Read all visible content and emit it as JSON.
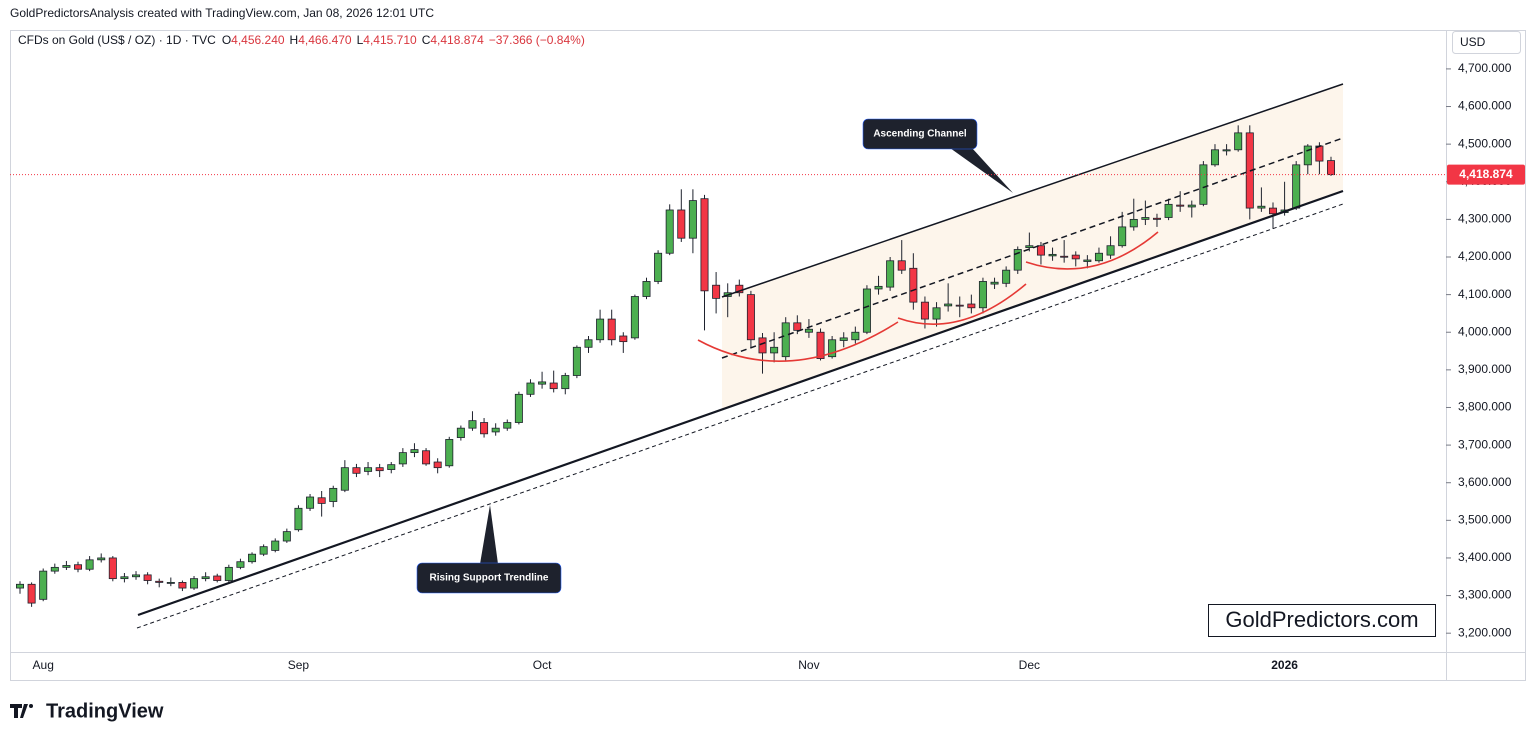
{
  "credit": "GoldPredictorsAnalysis created with TradingView.com, Jan 08, 2026 12:01 UTC",
  "brand": "TradingView",
  "chart_data": {
    "type": "candlestick",
    "symbol": "CFDs on Gold (US$ / OZ) · 1D · TVC",
    "fields": [
      [
        "O",
        "4,456.240"
      ],
      [
        "H",
        "4,466.470"
      ],
      [
        "L",
        "4,415.710"
      ],
      [
        "C",
        "4,418.874"
      ]
    ],
    "change": "−37.366 (−0.84%)",
    "currency": "USD",
    "price_label": "4,418.874",
    "annotations": [
      "Ascending Channel",
      "Rising Support Trendline"
    ],
    "watermark": "GoldPredictors.com",
    "up_color": "#4caf50",
    "down_color": "#f23645",
    "price_line_color": "#f23645",
    "ylim": [
      3150,
      4830
    ],
    "yticks": [
      {
        "value": 3200,
        "label": "3,200.000"
      },
      {
        "value": 3300,
        "label": "3,300.000"
      },
      {
        "value": 3400,
        "label": "3,400.000"
      },
      {
        "value": 3500,
        "label": "3,500.000"
      },
      {
        "value": 3600,
        "label": "3,600.000"
      },
      {
        "value": 3700,
        "label": "3,700.000"
      },
      {
        "value": 3800,
        "label": "3,800.000"
      },
      {
        "value": 3900,
        "label": "3,900.000"
      },
      {
        "value": 4000,
        "label": "4,000.000"
      },
      {
        "value": 4100,
        "label": "4,100.000"
      },
      {
        "value": 4200,
        "label": "4,200.000"
      },
      {
        "value": 4300,
        "label": "4,300.000"
      },
      {
        "value": 4400,
        "label": "4,400.000"
      },
      {
        "value": 4500,
        "label": "4,500.000"
      },
      {
        "value": 4600,
        "label": "4,600.000"
      },
      {
        "value": 4700,
        "label": "4,700.000"
      }
    ],
    "categories": [
      null,
      null,
      "Aug",
      null,
      null,
      null,
      null,
      null,
      null,
      null,
      null,
      null,
      null,
      null,
      null,
      null,
      null,
      null,
      null,
      null,
      null,
      null,
      null,
      null,
      "Sep",
      null,
      null,
      null,
      null,
      null,
      null,
      null,
      null,
      null,
      null,
      null,
      null,
      null,
      null,
      null,
      null,
      null,
      null,
      null,
      null,
      "Oct",
      null,
      null,
      null,
      null,
      null,
      null,
      null,
      null,
      null,
      null,
      null,
      null,
      null,
      null,
      null,
      null,
      null,
      null,
      null,
      null,
      null,
      null,
      "Nov",
      null,
      null,
      null,
      null,
      null,
      null,
      null,
      null,
      null,
      null,
      null,
      null,
      null,
      null,
      null,
      null,
      null,
      null,
      "Dec",
      null,
      null,
      null,
      null,
      null,
      null,
      null,
      null,
      null,
      null,
      null,
      null,
      null,
      null,
      null,
      null,
      null,
      null,
      null,
      null,
      null,
      "2026",
      null,
      null,
      null,
      null
    ],
    "ohlc": [
      [
        3320,
        3338,
        3305,
        3330
      ],
      [
        3330,
        3335,
        3270,
        3280
      ],
      [
        3290,
        3372,
        3285,
        3365
      ],
      [
        3365,
        3385,
        3358,
        3375
      ],
      [
        3375,
        3392,
        3368,
        3380
      ],
      [
        3382,
        3390,
        3362,
        3370
      ],
      [
        3370,
        3405,
        3365,
        3395
      ],
      [
        3395,
        3412,
        3388,
        3400
      ],
      [
        3400,
        3405,
        3338,
        3345
      ],
      [
        3345,
        3360,
        3335,
        3350
      ],
      [
        3350,
        3365,
        3342,
        3355
      ],
      [
        3355,
        3362,
        3330,
        3340
      ],
      [
        3338,
        3345,
        3322,
        3335
      ],
      [
        3335,
        3348,
        3325,
        3335
      ],
      [
        3335,
        3340,
        3312,
        3320
      ],
      [
        3320,
        3352,
        3315,
        3345
      ],
      [
        3345,
        3362,
        3338,
        3350
      ],
      [
        3352,
        3358,
        3335,
        3340
      ],
      [
        3340,
        3382,
        3336,
        3375
      ],
      [
        3375,
        3398,
        3370,
        3390
      ],
      [
        3390,
        3415,
        3385,
        3410
      ],
      [
        3410,
        3436,
        3405,
        3430
      ],
      [
        3420,
        3452,
        3415,
        3445
      ],
      [
        3445,
        3478,
        3440,
        3470
      ],
      [
        3475,
        3540,
        3470,
        3532
      ],
      [
        3532,
        3570,
        3525,
        3562
      ],
      [
        3560,
        3578,
        3510,
        3545
      ],
      [
        3550,
        3592,
        3535,
        3585
      ],
      [
        3580,
        3660,
        3575,
        3640
      ],
      [
        3640,
        3650,
        3615,
        3625
      ],
      [
        3630,
        3655,
        3620,
        3640
      ],
      [
        3640,
        3650,
        3615,
        3632
      ],
      [
        3635,
        3655,
        3625,
        3648
      ],
      [
        3650,
        3692,
        3642,
        3680
      ],
      [
        3680,
        3705,
        3668,
        3688
      ],
      [
        3685,
        3692,
        3645,
        3650
      ],
      [
        3655,
        3665,
        3625,
        3640
      ],
      [
        3645,
        3722,
        3640,
        3715
      ],
      [
        3720,
        3752,
        3712,
        3745
      ],
      [
        3745,
        3790,
        3738,
        3765
      ],
      [
        3760,
        3772,
        3720,
        3730
      ],
      [
        3735,
        3758,
        3725,
        3745
      ],
      [
        3745,
        3768,
        3738,
        3760
      ],
      [
        3760,
        3842,
        3755,
        3835
      ],
      [
        3835,
        3875,
        3828,
        3865
      ],
      [
        3862,
        3895,
        3850,
        3868
      ],
      [
        3865,
        3898,
        3840,
        3850
      ],
      [
        3850,
        3892,
        3835,
        3885
      ],
      [
        3885,
        3965,
        3878,
        3960
      ],
      [
        3960,
        3990,
        3945,
        3980
      ],
      [
        3980,
        4060,
        3972,
        4035
      ],
      [
        4035,
        4060,
        3965,
        3980
      ],
      [
        3990,
        4000,
        3945,
        3975
      ],
      [
        3985,
        4100,
        3980,
        4095
      ],
      [
        4095,
        4145,
        4088,
        4135
      ],
      [
        4135,
        4218,
        4128,
        4210
      ],
      [
        4210,
        4340,
        4205,
        4325
      ],
      [
        4325,
        4380,
        4240,
        4250
      ],
      [
        4250,
        4380,
        4210,
        4350
      ],
      [
        4355,
        4365,
        4005,
        4110
      ],
      [
        4125,
        4160,
        4050,
        4090
      ],
      [
        4095,
        4130,
        4040,
        4105
      ],
      [
        4125,
        4140,
        4095,
        4105
      ],
      [
        4100,
        4110,
        3960,
        3980
      ],
      [
        3985,
        3998,
        3890,
        3945
      ],
      [
        3945,
        4000,
        3920,
        3960
      ],
      [
        3935,
        4040,
        3925,
        4025
      ],
      [
        4025,
        4045,
        3995,
        4005
      ],
      [
        4000,
        4035,
        3985,
        4008
      ],
      [
        4000,
        4010,
        3925,
        3930
      ],
      [
        3935,
        3990,
        3930,
        3980
      ],
      [
        3978,
        4000,
        3960,
        3985
      ],
      [
        3980,
        4015,
        3970,
        4000
      ],
      [
        4000,
        4125,
        3995,
        4115
      ],
      [
        4115,
        4150,
        4100,
        4122
      ],
      [
        4120,
        4200,
        4110,
        4190
      ],
      [
        4190,
        4245,
        4155,
        4165
      ],
      [
        4170,
        4210,
        4060,
        4080
      ],
      [
        4080,
        4095,
        4010,
        4035
      ],
      [
        4035,
        4080,
        4015,
        4065
      ],
      [
        4070,
        4130,
        4055,
        4075
      ],
      [
        4072,
        4095,
        4040,
        4070
      ],
      [
        4075,
        4100,
        4050,
        4065
      ],
      [
        4065,
        4145,
        4050,
        4135
      ],
      [
        4128,
        4145,
        4115,
        4133
      ],
      [
        4130,
        4175,
        4120,
        4165
      ],
      [
        4165,
        4228,
        4155,
        4220
      ],
      [
        4225,
        4265,
        4215,
        4230
      ],
      [
        4230,
        4240,
        4180,
        4205
      ],
      [
        4203,
        4225,
        4190,
        4207
      ],
      [
        4202,
        4245,
        4185,
        4200
      ],
      [
        4205,
        4215,
        4175,
        4195
      ],
      [
        4188,
        4205,
        4170,
        4192
      ],
      [
        4190,
        4225,
        4185,
        4210
      ],
      [
        4205,
        4255,
        4195,
        4230
      ],
      [
        4230,
        4320,
        4225,
        4280
      ],
      [
        4280,
        4355,
        4270,
        4300
      ],
      [
        4300,
        4350,
        4285,
        4305
      ],
      [
        4303,
        4315,
        4280,
        4300
      ],
      [
        4305,
        4355,
        4298,
        4340
      ],
      [
        4338,
        4375,
        4320,
        4335
      ],
      [
        4333,
        4350,
        4305,
        4338
      ],
      [
        4340,
        4455,
        4335,
        4445
      ],
      [
        4445,
        4500,
        4440,
        4485
      ],
      [
        4482,
        4500,
        4470,
        4485
      ],
      [
        4485,
        4550,
        4480,
        4530
      ],
      [
        4530,
        4550,
        4300,
        4330
      ],
      [
        4330,
        4385,
        4320,
        4335
      ],
      [
        4330,
        4345,
        4275,
        4315
      ],
      [
        4318,
        4400,
        4310,
        4325
      ],
      [
        4330,
        4455,
        4325,
        4445
      ],
      [
        4445,
        4500,
        4420,
        4495
      ],
      [
        4495,
        4505,
        4420,
        4455
      ],
      [
        4456.24,
        4466.47,
        4415.71,
        4418.874
      ]
    ]
  }
}
